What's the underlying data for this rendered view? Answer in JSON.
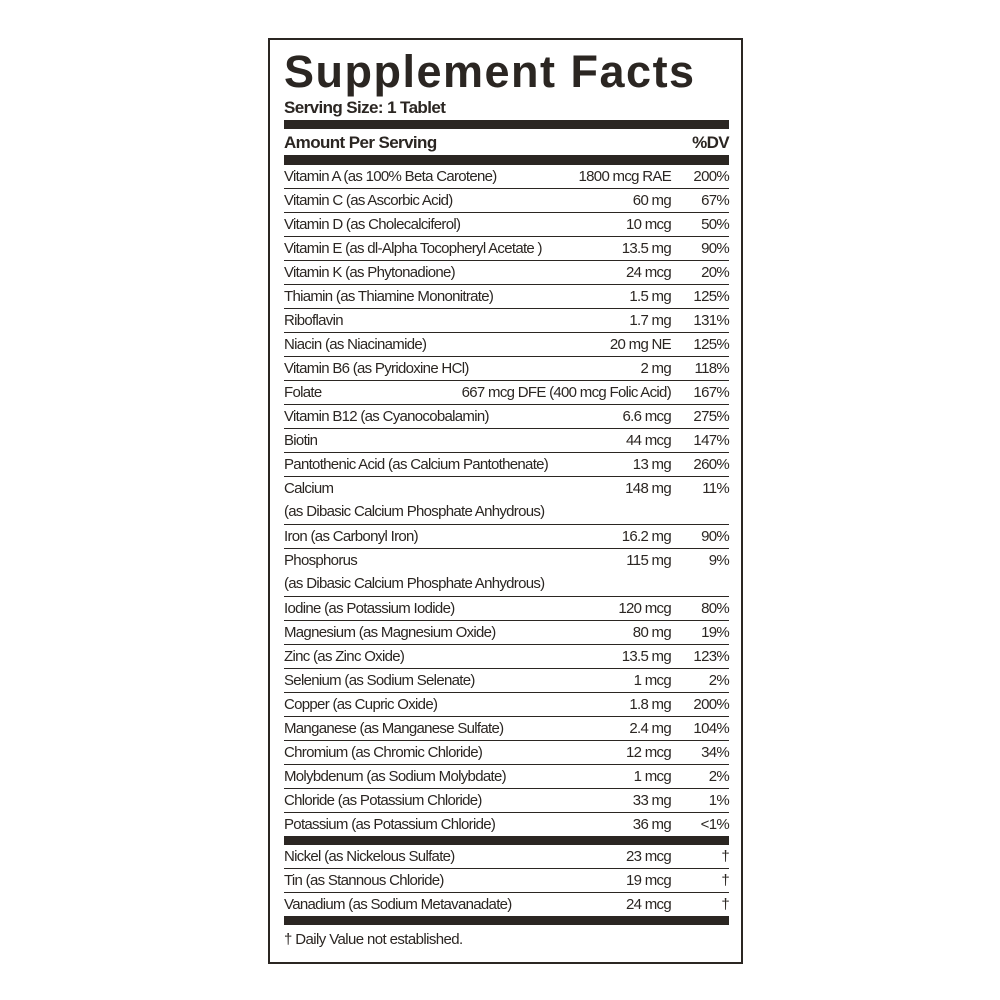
{
  "title": "Supplement Facts",
  "serving_size": "Serving Size: 1 Tablet",
  "header": {
    "amount": "Amount Per Serving",
    "dv": "%DV"
  },
  "nutrients": [
    {
      "name": "Vitamin A (as 100% Beta Carotene)",
      "amount": "1800 mcg RAE",
      "dv": "200%"
    },
    {
      "name": "Vitamin C (as Ascorbic Acid)",
      "amount": "60 mg",
      "dv": "67%"
    },
    {
      "name": "Vitamin D (as Cholecalciferol)",
      "amount": "10 mcg",
      "dv": "50%"
    },
    {
      "name": "Vitamin E (as dl-Alpha Tocopheryl Acetate )",
      "amount": "13.5 mg",
      "dv": "90%"
    },
    {
      "name": "Vitamin K (as Phytonadione)",
      "amount": "24 mcg",
      "dv": "20%"
    },
    {
      "name": "Thiamin (as Thiamine Mononitrate)",
      "amount": "1.5 mg",
      "dv": "125%"
    },
    {
      "name": "Riboflavin",
      "amount": "1.7 mg",
      "dv": "131%"
    },
    {
      "name": "Niacin (as Niacinamide)",
      "amount": "20 mg NE",
      "dv": "125%"
    },
    {
      "name": "Vitamin B6 (as Pyridoxine HCl)",
      "amount": "2 mg",
      "dv": "118%"
    },
    {
      "name": "Folate",
      "amount": "667 mcg DFE (400 mcg Folic Acid)",
      "dv": "167%"
    },
    {
      "name": "Vitamin B12 (as Cyanocobalamin)",
      "amount": "6.6 mcg",
      "dv": "275%"
    },
    {
      "name": "Biotin",
      "amount": "44 mcg",
      "dv": "147%"
    },
    {
      "name": "Pantothenic Acid (as Calcium Pantothenate)",
      "amount": "13 mg",
      "dv": "260%"
    },
    {
      "name": "Calcium",
      "sub": "(as Dibasic Calcium Phosphate Anhydrous)",
      "amount": "148 mg",
      "dv": "11%"
    },
    {
      "name": "Iron (as Carbonyl Iron)",
      "amount": "16.2 mg",
      "dv": "90%"
    },
    {
      "name": "Phosphorus",
      "sub": "(as Dibasic Calcium Phosphate Anhydrous)",
      "amount": "115 mg",
      "dv": "9%"
    },
    {
      "name": "Iodine (as Potassium Iodide)",
      "amount": "120 mcg",
      "dv": "80%"
    },
    {
      "name": "Magnesium (as Magnesium Oxide)",
      "amount": "80 mg",
      "dv": "19%"
    },
    {
      "name": "Zinc (as Zinc Oxide)",
      "amount": "13.5 mg",
      "dv": "123%"
    },
    {
      "name": "Selenium (as Sodium Selenate)",
      "amount": "1 mcg",
      "dv": "2%"
    },
    {
      "name": "Copper (as Cupric Oxide)",
      "amount": "1.8 mg",
      "dv": "200%"
    },
    {
      "name": "Manganese (as Manganese Sulfate)",
      "amount": "2.4 mg",
      "dv": "104%"
    },
    {
      "name": "Chromium (as Chromic Chloride)",
      "amount": "12 mcg",
      "dv": "34%"
    },
    {
      "name": "Molybdenum (as Sodium Molybdate)",
      "amount": "1 mcg",
      "dv": "2%"
    },
    {
      "name": "Chloride (as Potassium Chloride)",
      "amount": "33 mg",
      "dv": "1%"
    },
    {
      "name": "Potassium (as Potassium Chloride)",
      "amount": "36 mg",
      "dv": "<1%"
    }
  ],
  "other": [
    {
      "name": "Nickel (as Nickelous Sulfate)",
      "amount": "23 mcg",
      "dv": "†"
    },
    {
      "name": "Tin (as Stannous Chloride)",
      "amount": "19 mcg",
      "dv": "†"
    },
    {
      "name": "Vanadium (as Sodium Metavanadate)",
      "amount": "24 mcg",
      "dv": "†"
    }
  ],
  "footnote": "† Daily Value not established."
}
